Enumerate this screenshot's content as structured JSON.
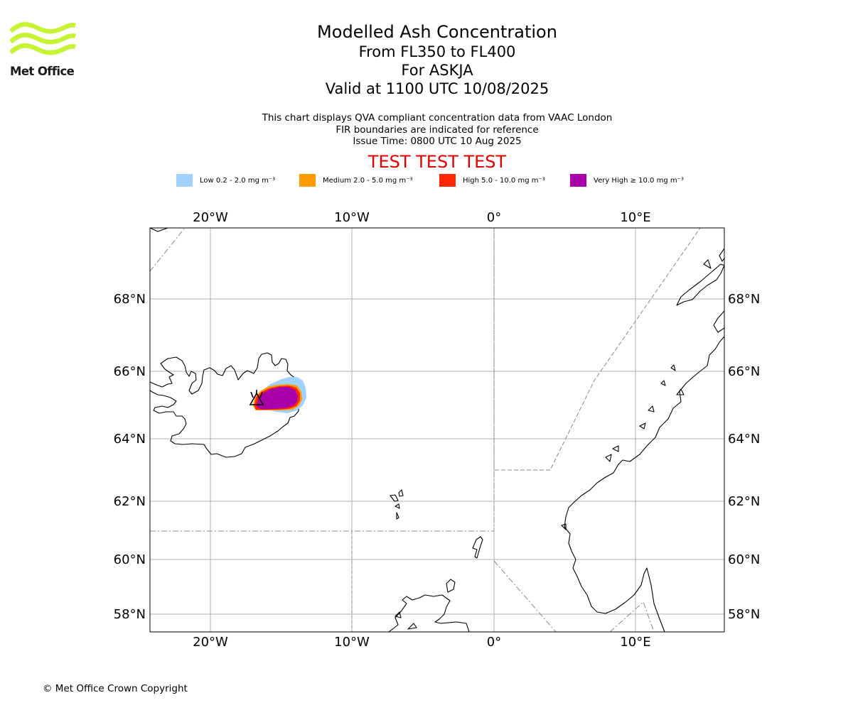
{
  "brand": {
    "name": "Met Office",
    "logo_color": "#c6f432"
  },
  "header": {
    "title": "Modelled Ash Concentration",
    "levels": "From FL350 to FL400",
    "volcano": "For ASKJA",
    "valid": "Valid at 1100 UTC 10/08/2025",
    "note1": "This chart displays QVA compliant concentration data from VAAC London",
    "note2": "FIR boundaries are indicated for reference",
    "issue": "Issue Time: 0800 UTC 10 Aug 2025",
    "test_banner": "TEST TEST TEST"
  },
  "legend": [
    {
      "label": "Low 0.2 - 2.0 mg m⁻³",
      "color": "#a0d2ff"
    },
    {
      "label": "Medium 2.0 - 5.0 mg m⁻³",
      "color": "#ff9a00"
    },
    {
      "label": "High 5.0 - 10.0 mg m⁻³",
      "color": "#ff2800"
    },
    {
      "label": "Very High ≥ 10.0 mg m⁻³",
      "color": "#aa00aa"
    }
  ],
  "map": {
    "lon_range": [
      -24,
      16
    ],
    "lat_range": [
      57.5,
      70
    ],
    "lon_ticks": [
      {
        "value": -20,
        "label": "20°W"
      },
      {
        "value": -10,
        "label": "10°W"
      },
      {
        "value": 0,
        "label": "0°"
      },
      {
        "value": 10,
        "label": "10°E"
      }
    ],
    "lat_ticks": [
      {
        "value": 58,
        "label": "58°N"
      },
      {
        "value": 60,
        "label": "60°N"
      },
      {
        "value": 62,
        "label": "62°N"
      },
      {
        "value": 64,
        "label": "64°N"
      },
      {
        "value": 66,
        "label": "66°N"
      },
      {
        "value": 68,
        "label": "68°N"
      }
    ],
    "volcano_symbol": "volcano-icon"
  },
  "footer": {
    "copyright": "© Met Office Crown Copyright"
  }
}
